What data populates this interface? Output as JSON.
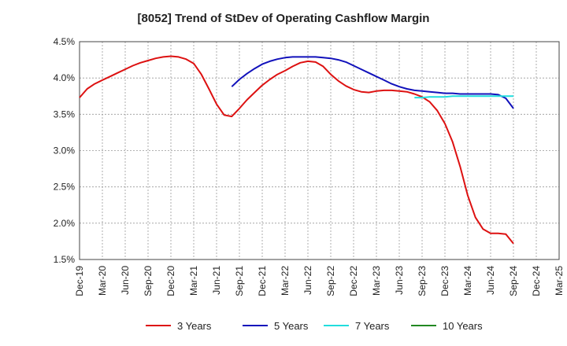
{
  "chart_data": {
    "type": "line",
    "title": "[8052]  Trend of StDev of Operating Cashflow Margin",
    "xlabel": "",
    "ylabel": "",
    "x_ticks": [
      "Dec-19",
      "Mar-20",
      "Jun-20",
      "Sep-20",
      "Dec-20",
      "Mar-21",
      "Jun-21",
      "Sep-21",
      "Dec-21",
      "Mar-22",
      "Jun-22",
      "Sep-22",
      "Dec-22",
      "Mar-23",
      "Jun-23",
      "Sep-23",
      "Dec-23",
      "Mar-24",
      "Jun-24",
      "Sep-24",
      "Dec-24",
      "Mar-25"
    ],
    "y_ticks": [
      "1.5%",
      "2.0%",
      "2.5%",
      "3.0%",
      "3.5%",
      "4.0%",
      "4.5%"
    ],
    "ylim": [
      1.5,
      4.5
    ],
    "grid": true,
    "legend_position": "bottom",
    "series": [
      {
        "name": "3 Years",
        "color": "#dd1111",
        "x": [
          "Dec-19",
          "Jan-20",
          "Feb-20",
          "Mar-20",
          "Apr-20",
          "May-20",
          "Jun-20",
          "Jul-20",
          "Aug-20",
          "Sep-20",
          "Oct-20",
          "Nov-20",
          "Dec-20",
          "Jan-21",
          "Feb-21",
          "Mar-21",
          "Apr-21",
          "May-21",
          "Jun-21",
          "Jul-21",
          "Aug-21",
          "Sep-21",
          "Oct-21",
          "Nov-21",
          "Dec-21",
          "Jan-22",
          "Feb-22",
          "Mar-22",
          "Apr-22",
          "May-22",
          "Jun-22",
          "Jul-22",
          "Aug-22",
          "Sep-22",
          "Oct-22",
          "Nov-22",
          "Dec-22",
          "Jan-23",
          "Feb-23",
          "Mar-23",
          "Apr-23",
          "May-23",
          "Jun-23",
          "Jul-23",
          "Aug-23",
          "Sep-23",
          "Oct-23",
          "Nov-23",
          "Dec-23",
          "Jan-24",
          "Feb-24",
          "Mar-24",
          "Apr-24",
          "May-24",
          "Jun-24",
          "Jul-24",
          "Aug-24",
          "Sep-24"
        ],
        "values": [
          3.73,
          3.85,
          3.92,
          3.97,
          4.02,
          4.07,
          4.12,
          4.17,
          4.21,
          4.24,
          4.27,
          4.29,
          4.3,
          4.29,
          4.26,
          4.2,
          4.05,
          3.85,
          3.64,
          3.49,
          3.47,
          3.58,
          3.7,
          3.8,
          3.9,
          3.98,
          4.05,
          4.1,
          4.16,
          4.21,
          4.23,
          4.22,
          4.16,
          4.05,
          3.96,
          3.89,
          3.84,
          3.81,
          3.8,
          3.82,
          3.83,
          3.83,
          3.82,
          3.81,
          3.78,
          3.74,
          3.67,
          3.55,
          3.37,
          3.12,
          2.78,
          2.38,
          2.08,
          1.92,
          1.86,
          1.86,
          1.85,
          1.72
        ]
      },
      {
        "name": "5 Years",
        "color": "#1111bb",
        "x": [
          "Aug-21",
          "Sep-21",
          "Oct-21",
          "Nov-21",
          "Dec-21",
          "Jan-22",
          "Feb-22",
          "Mar-22",
          "Apr-22",
          "May-22",
          "Jun-22",
          "Jul-22",
          "Aug-22",
          "Sep-22",
          "Oct-22",
          "Nov-22",
          "Dec-22",
          "Jan-23",
          "Feb-23",
          "Mar-23",
          "Apr-23",
          "May-23",
          "Jun-23",
          "Jul-23",
          "Aug-23",
          "Sep-23",
          "Oct-23",
          "Nov-23",
          "Dec-23",
          "Jan-24",
          "Feb-24",
          "Mar-24",
          "Apr-24",
          "May-24",
          "Jun-24",
          "Jul-24",
          "Aug-24",
          "Sep-24"
        ],
        "values": [
          3.88,
          3.98,
          4.06,
          4.13,
          4.19,
          4.23,
          4.26,
          4.28,
          4.29,
          4.29,
          4.29,
          4.29,
          4.28,
          4.27,
          4.25,
          4.22,
          4.17,
          4.12,
          4.07,
          4.02,
          3.97,
          3.92,
          3.88,
          3.85,
          3.83,
          3.82,
          3.81,
          3.8,
          3.79,
          3.79,
          3.78,
          3.78,
          3.78,
          3.78,
          3.78,
          3.77,
          3.72,
          3.58
        ]
      },
      {
        "name": "7 Years",
        "color": "#22dddd",
        "x": [
          "Aug-23",
          "Sep-23",
          "Oct-23",
          "Nov-23",
          "Dec-23",
          "Jan-24",
          "Feb-24",
          "Mar-24",
          "Apr-24",
          "May-24",
          "Jun-24",
          "Jul-24",
          "Aug-24",
          "Sep-24"
        ],
        "values": [
          3.73,
          3.73,
          3.74,
          3.74,
          3.74,
          3.75,
          3.75,
          3.75,
          3.75,
          3.75,
          3.75,
          3.75,
          3.75,
          3.75
        ]
      },
      {
        "name": "10 Years",
        "color": "#228822",
        "x": [],
        "values": []
      }
    ]
  }
}
